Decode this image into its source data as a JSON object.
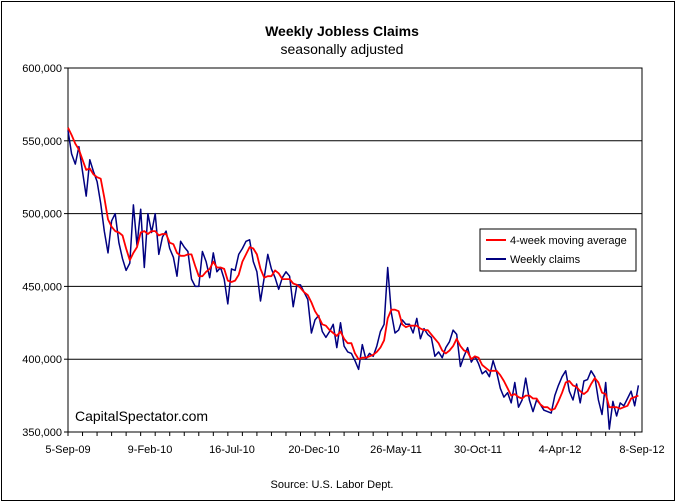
{
  "chart_data": {
    "type": "line",
    "title": "Weekly Jobless Claims",
    "subtitle": "seasonally adjusted",
    "source": "Source: U.S. Labor Dept.",
    "watermark": "CapitalSpectator.com",
    "x_tick_labels": [
      "5-Sep-09",
      "9-Feb-10",
      "16-Jul-10",
      "20-Dec-10",
      "26-May-11",
      "30-Oct-11",
      "4-Apr-12",
      "8-Sep-12"
    ],
    "x_range": [
      "5-Sep-09",
      "8-Sep-12"
    ],
    "weeks": 158,
    "ylim": [
      350000,
      600000
    ],
    "y_ticks": [
      350000,
      400000,
      450000,
      500000,
      550000,
      600000
    ],
    "y_tick_labels": [
      "350,000",
      "400,000",
      "450,000",
      "500,000",
      "550,000",
      "600,000"
    ],
    "legend_position": "right",
    "series": [
      {
        "name": "Weekly claims",
        "color": "#000080",
        "values": [
          557000,
          541000,
          534000,
          546000,
          529000,
          512000,
          537000,
          529000,
          522000,
          507000,
          488000,
          473000,
          495000,
          500000,
          480000,
          469000,
          461000,
          466000,
          506000,
          478000,
          503000,
          463000,
          500000,
          487000,
          500000,
          472000,
          484000,
          488000,
          476000,
          470000,
          457000,
          481000,
          477000,
          474000,
          455000,
          450000,
          450000,
          474000,
          467000,
          456000,
          473000,
          460000,
          463000,
          455000,
          438000,
          462000,
          461000,
          472000,
          476000,
          481000,
          482000,
          467000,
          460000,
          440000,
          456000,
          472000,
          462000,
          456000,
          448000,
          456000,
          460000,
          457000,
          436000,
          451000,
          451000,
          446000,
          441000,
          418000,
          427000,
          430000,
          419000,
          415000,
          419000,
          424000,
          408000,
          425000,
          409000,
          405000,
          404000,
          399000,
          393000,
          410000,
          400000,
          404000,
          402000,
          409000,
          419000,
          424000,
          463000,
          432000,
          418000,
          420000,
          427000,
          424000,
          424000,
          418000,
          428000,
          414000,
          421000,
          417000,
          415000,
          402000,
          405000,
          401000,
          408000,
          412000,
          420000,
          417000,
          395000,
          402000,
          408000,
          398000,
          402000,
          397000,
          390000,
          392000,
          388000,
          399000,
          391000,
          380000,
          374000,
          377000,
          370000,
          384000,
          367000,
          372000,
          387000,
          372000,
          364000,
          372000,
          369000,
          365000,
          364000,
          363000,
          375000,
          382000,
          388000,
          392000,
          378000,
          372000,
          383000,
          370000,
          385000,
          386000,
          392000,
          388000,
          372000,
          362000,
          384000,
          352000,
          371000,
          361000,
          370000,
          368000,
          373000,
          378000,
          368000,
          382000
        ]
      },
      {
        "name": "4-week moving average",
        "color": "#ff0000",
        "values": [
          559000,
          554000,
          548000,
          544000,
          537000,
          530000,
          531000,
          527000,
          525000,
          524000,
          511000,
          496000,
          491000,
          488000,
          487000,
          485000,
          476000,
          468000,
          473000,
          477000,
          487000,
          488000,
          486000,
          488000,
          488000,
          485000,
          486000,
          486000,
          480000,
          479000,
          473000,
          471000,
          471000,
          472000,
          472000,
          464000,
          457000,
          457000,
          460000,
          462000,
          467000,
          463000,
          463000,
          462000,
          454000,
          453000,
          454000,
          458000,
          467000,
          472000,
          477000,
          476000,
          472000,
          462000,
          456000,
          457000,
          457000,
          461000,
          459000,
          455000,
          455000,
          455000,
          452000,
          451000,
          449000,
          446000,
          444000,
          439000,
          433000,
          429000,
          424000,
          423000,
          420000,
          418000,
          416000,
          419000,
          414000,
          411000,
          411000,
          404000,
          400000,
          401000,
          401000,
          402000,
          403000,
          405000,
          408000,
          413000,
          428000,
          434000,
          434000,
          433000,
          424000,
          422000,
          423000,
          423000,
          423000,
          421000,
          420000,
          420000,
          417000,
          414000,
          411000,
          406000,
          404000,
          406000,
          409000,
          414000,
          409000,
          406000,
          405000,
          400000,
          402000,
          401000,
          396000,
          394000,
          392000,
          392000,
          392000,
          389000,
          385000,
          380000,
          375000,
          376000,
          374000,
          373000,
          375000,
          375000,
          373000,
          373000,
          369000,
          367000,
          367000,
          365000,
          366000,
          371000,
          377000,
          384000,
          385000,
          382000,
          381000,
          378000,
          376000,
          378000,
          383000,
          387000,
          384000,
          377000,
          376000,
          367000,
          367000,
          367000,
          366000,
          367000,
          368000,
          373000,
          374000,
          375000
        ]
      }
    ]
  }
}
